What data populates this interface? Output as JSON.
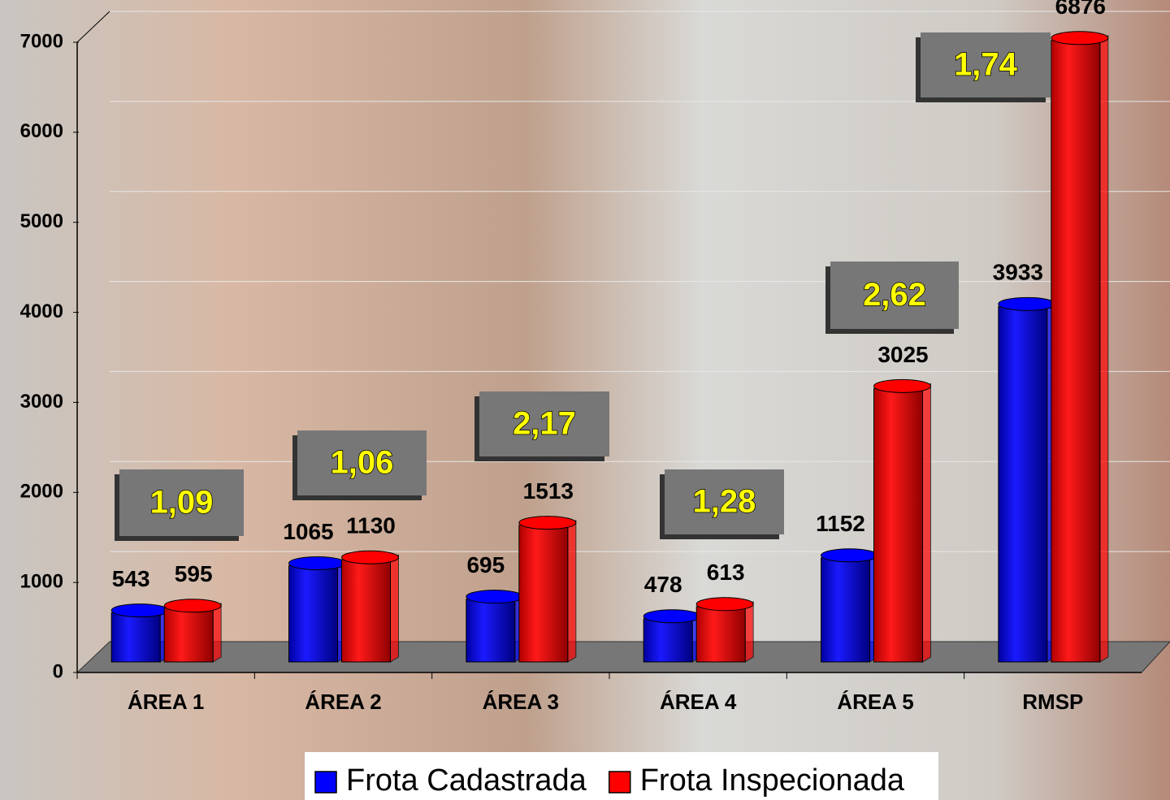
{
  "chart_data": {
    "type": "bar",
    "categories": [
      "ÁREA 1",
      "ÁREA 2",
      "ÁREA 3",
      "ÁREA 4",
      "ÁREA 5",
      "RMSP"
    ],
    "series": [
      {
        "name": "Frota Cadastrada",
        "color": "#0000ff",
        "values": [
          543,
          1065,
          695,
          478,
          1152,
          3933
        ]
      },
      {
        "name": "Frota Inspecionada",
        "color": "#ff0000",
        "values": [
          595,
          1130,
          1513,
          613,
          3025,
          6876
        ]
      }
    ],
    "annotations": [
      "1,09",
      "1,06",
      "2,17",
      "1,28",
      "2,62",
      "1,74"
    ],
    "ylim": [
      0,
      7000
    ],
    "yticks": [
      0,
      1000,
      2000,
      3000,
      4000,
      5000,
      6000,
      7000
    ],
    "grid": true
  }
}
